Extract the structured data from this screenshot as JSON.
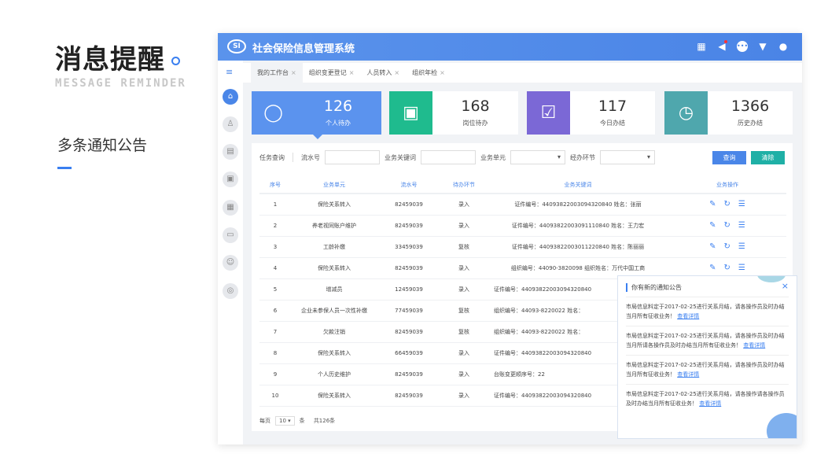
{
  "slide": {
    "title": "消息提醒",
    "subtitle_en": "MESSAGE REMINDER",
    "feature": "多条通知公告"
  },
  "header": {
    "logo": "SI",
    "title": "社会保险信息管理系统",
    "icons": [
      "calendar-icon",
      "speaker-icon",
      "chat-icon",
      "shirt-icon",
      "user-icon"
    ]
  },
  "tabs": [
    {
      "label": "我的工作台",
      "active": true
    },
    {
      "label": "组织变更登记"
    },
    {
      "label": "人员转入"
    },
    {
      "label": "组织年检"
    }
  ],
  "cards": [
    {
      "value": "126",
      "label": "个人待办",
      "color": "#5b93ee",
      "icon": "person-icon"
    },
    {
      "value": "168",
      "label": "岗位待办",
      "color": "#1fbb8e",
      "icon": "briefcase-icon"
    },
    {
      "value": "117",
      "label": "今日办结",
      "color": "#7b68d6",
      "icon": "calendar-check-icon"
    },
    {
      "value": "1366",
      "label": "历史办结",
      "color": "#4fa7ad",
      "icon": "clock-icon"
    }
  ],
  "query": {
    "label": "任务查询",
    "serial": "流水号",
    "keyword": "业务关键词",
    "unit": "业务单元",
    "step": "经办环节",
    "search": "查询",
    "clear": "清除"
  },
  "table": {
    "headers": [
      "序号",
      "业务单元",
      "流水号",
      "待办环节",
      "业务关键词",
      "业务操作"
    ],
    "rows": [
      [
        "1",
        "保险关系转入",
        "82459039",
        "录入",
        "证件编号：44093822003094320840   姓名：张丽"
      ],
      [
        "2",
        "养老视同账户维护",
        "82459039",
        "录入",
        "证件编号：44093822003091110840   姓名：王力宏"
      ],
      [
        "3",
        "工龄补缴",
        "33459039",
        "复核",
        "证件编号：44093822003011220840   姓名：陈丽丽"
      ],
      [
        "4",
        "保险关系转入",
        "82459039",
        "录入",
        "组织编号：44090-3820098   组织姓名：万代中国工商"
      ],
      [
        "5",
        "增减员",
        "12459039",
        "录入",
        "证件编号：44093822003094320840"
      ],
      [
        "6",
        "企业未参保人员一次性补缴",
        "77459039",
        "复核",
        "组织编号：44093-8220022   姓名："
      ],
      [
        "7",
        "欠款注销",
        "82459039",
        "复核",
        "组织编号：44093-8220022   姓名："
      ],
      [
        "8",
        "保险关系转入",
        "66459039",
        "录入",
        "证件编号：44093822003094320840"
      ],
      [
        "9",
        "个人历史维护",
        "82459039",
        "录入",
        "台账变更顺序号：22"
      ],
      [
        "10",
        "保险关系转入",
        "82459039",
        "录入",
        "证件编号：44093822003094320840"
      ]
    ]
  },
  "pager": {
    "per_page": "每页",
    "size": "10",
    "unit": "条",
    "total": "共126条"
  },
  "popup": {
    "title": "你有新的通知公告",
    "link": "查看详情",
    "notices": [
      "市局信息料定于2017-02-25进行关系月结，请各操作员及时办结当月所有征收业务！",
      "市局信息料定于2017-02-25进行关系月结，请各操作员及时办结当月所请各操作员及时办结当月所有征收业务！",
      "市局信息料定于2017-02-25进行关系月结，请各操作员及时办结当月所有征收业务！",
      "市局信息料定于2017-02-25进行关系月结，请各操作请各操作员及时办结当月所有征收业务！"
    ]
  }
}
